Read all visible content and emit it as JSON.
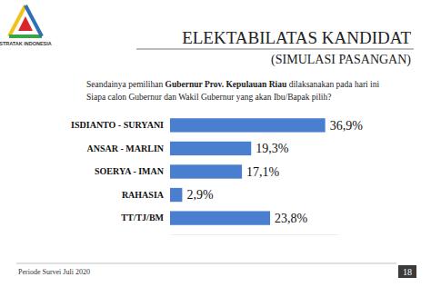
{
  "chart_data": {
    "type": "bar",
    "orientation": "horizontal",
    "logo_text": "STRATAK INDONESIA",
    "title": "ELEKTABILATAS KANDIDAT",
    "subtitle": "(SIMULASI PASANGAN)",
    "question": [
      [
        "Seandainya pemilihan ",
        "Gubernur Prov. Kepulauan Riau",
        " dilaksanakan pada hari ini"
      ],
      [
        "Siapa calon Gubernur dan Wakil Gubernur yang akan Ibu/Bapak pilih?"
      ]
    ],
    "categories": [
      "ISDIANTO - SURYANI",
      "ANSAR - MARLIN",
      "SOERYA - IMAN",
      "RAHASIA",
      "TT/TJ/BM"
    ],
    "values": [
      36.9,
      19.3,
      17.1,
      2.9,
      23.8
    ],
    "value_labels": [
      "36,9%",
      "19,3%",
      "17,1%",
      "2,9%",
      "23,8%"
    ],
    "color": "#4a7fcf",
    "xlim": [
      0,
      40
    ],
    "tick_labels": false,
    "grid": false,
    "data_labels": true,
    "footer": "Periode Survei Juli 2020",
    "page_number": "18"
  }
}
